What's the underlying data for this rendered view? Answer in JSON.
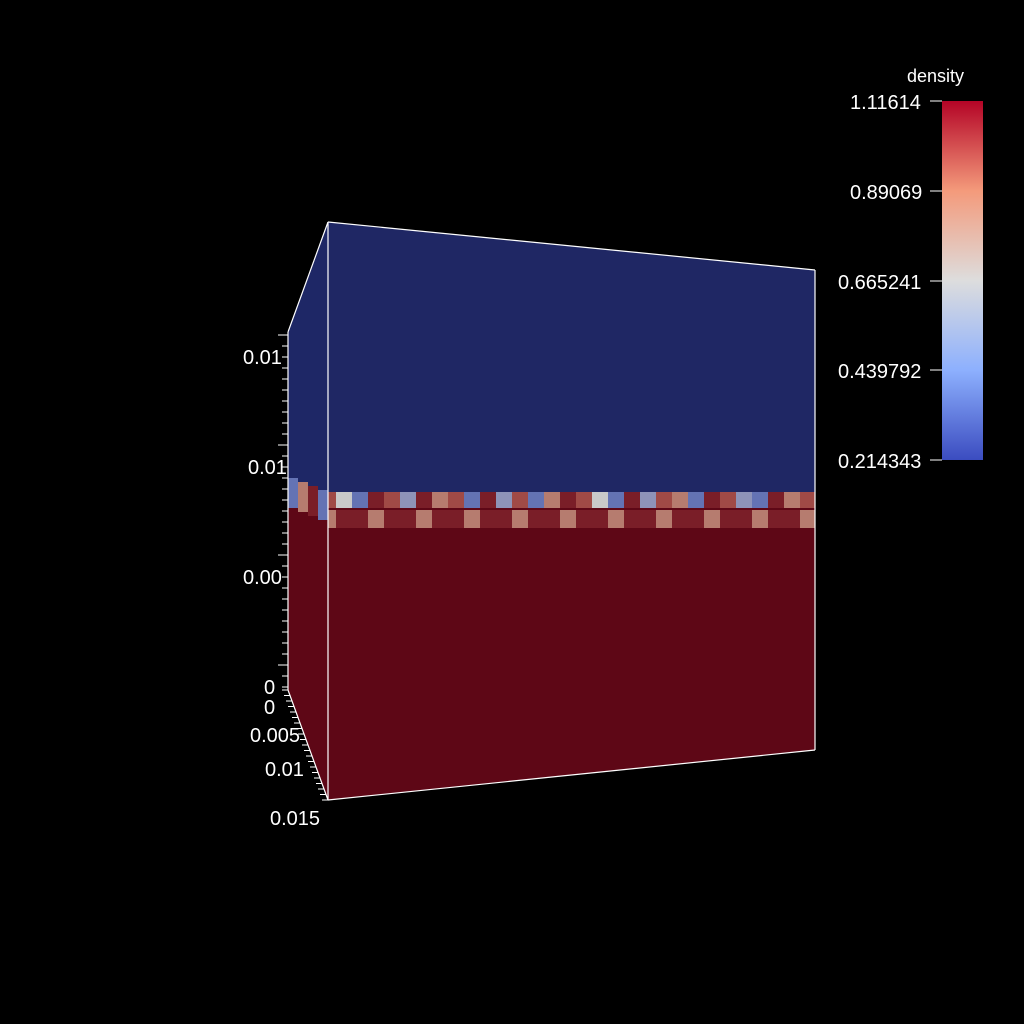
{
  "scalar_bar": {
    "title": "density",
    "ticks": [
      "1.11614",
      "0.89069",
      "0.665241",
      "0.439792",
      "0.214343"
    ],
    "range": [
      0.214343,
      1.11614
    ],
    "colors": {
      "low": "#3b4cc0",
      "mid": "#dddddd",
      "high": "#b40426"
    }
  },
  "axes": {
    "vertical_tick_labels": [
      "0.01",
      "0.01",
      "0.00",
      "0"
    ],
    "depth_tick_labels": [
      "0",
      "0.005",
      "0.01",
      "0.015"
    ]
  },
  "volume": {
    "upper_color": "#1e2766",
    "lower_color": "#5e0716",
    "interface_colors": [
      "#6473b4",
      "#8e93b8",
      "#b67c6f",
      "#a04a46",
      "#7a1e28",
      "#c9c9c9"
    ]
  }
}
